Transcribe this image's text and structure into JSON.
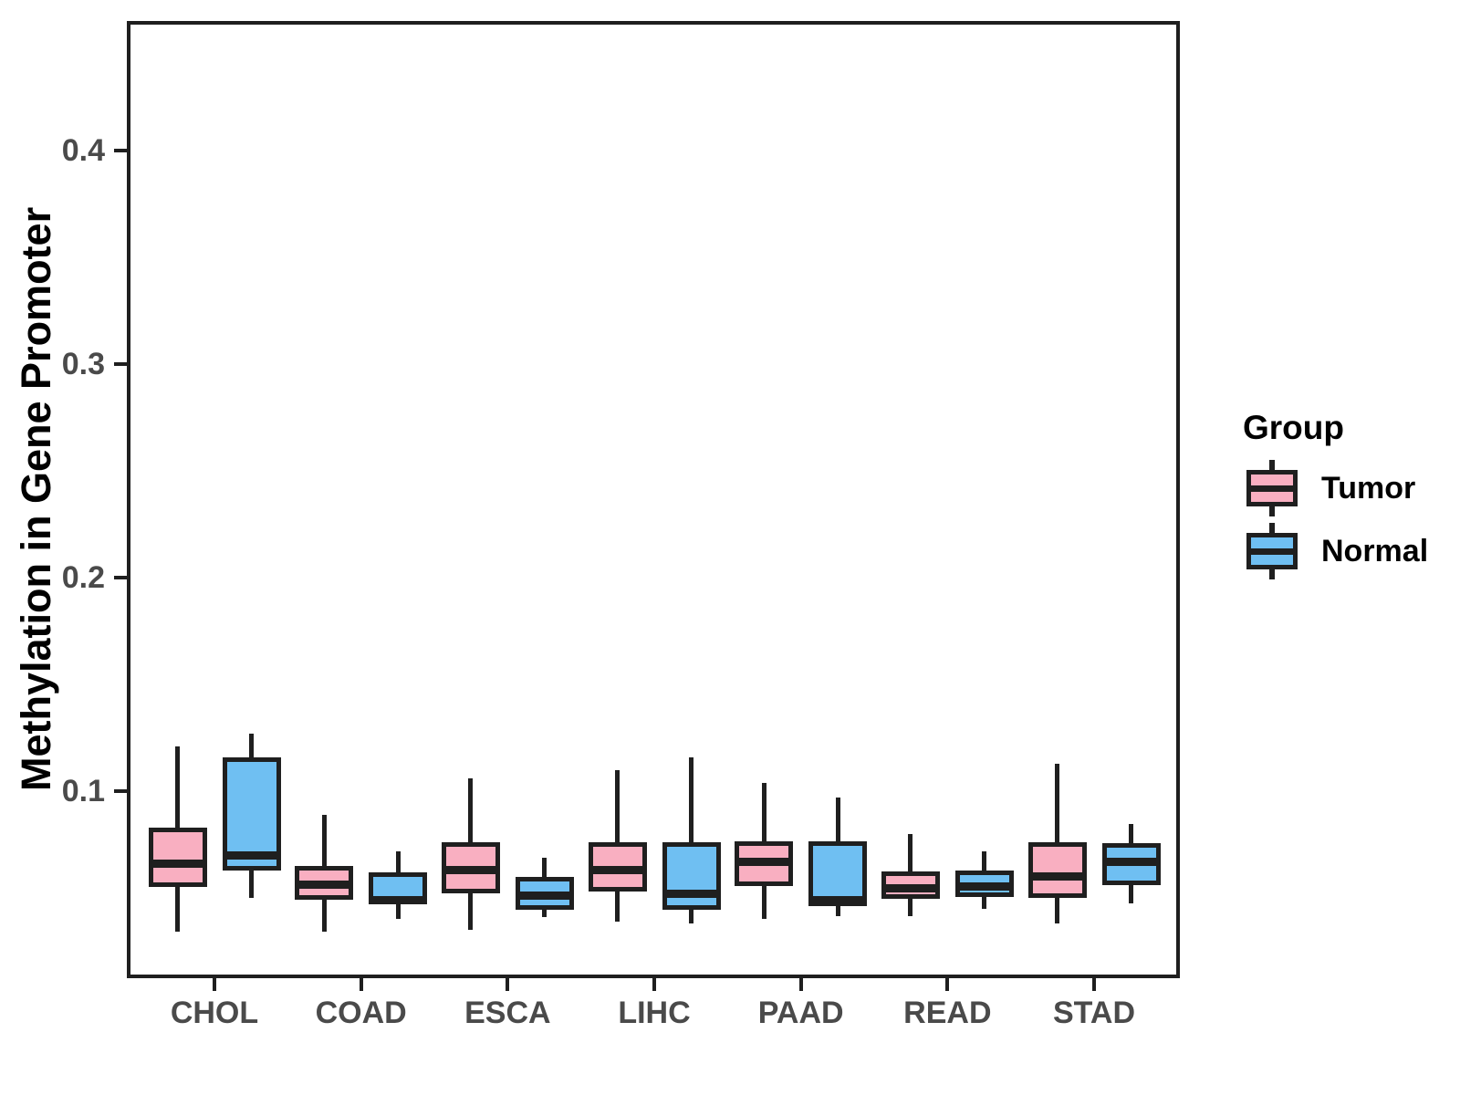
{
  "figure": {
    "y_axis_title": "Methylation in Gene Promoter",
    "x_axis_title": "",
    "legend": {
      "title": "Group",
      "entries": [
        {
          "label": "Tumor",
          "color": "#F9AFC1"
        },
        {
          "label": "Normal",
          "color": "#6FBFF2"
        }
      ]
    }
  },
  "chart_data": {
    "type": "boxplot",
    "title": "",
    "xlabel": "",
    "ylabel": "Methylation in Gene Promoter",
    "categories": [
      "CHOL",
      "COAD",
      "ESCA",
      "LIHC",
      "PAAD",
      "READ",
      "STAD"
    ],
    "y_ticks": [
      0.1,
      0.2,
      0.3,
      0.4
    ],
    "y_tick_labels": [
      "0.1",
      "0.2",
      "0.3",
      "0.4"
    ],
    "ylim": [
      0.012,
      0.46
    ],
    "grid": false,
    "legend_position": "right",
    "legend_title": "Group",
    "colors": {
      "stroke": "#1F1F1F",
      "tick_text": "#4A4A4A",
      "axis_title_text": "#000000",
      "tumor_fill": "#F9AFC1",
      "normal_fill": "#6FBFF2",
      "background": "#FFFFFF"
    },
    "series": [
      {
        "name": "Tumor",
        "color": "#F9AFC1",
        "boxes": [
          {
            "category": "CHOL",
            "whisker_low": 0.034,
            "q1": 0.055,
            "median": 0.066,
            "q3": 0.083,
            "whisker_high": 0.121
          },
          {
            "category": "COAD",
            "whisker_low": 0.034,
            "q1": 0.049,
            "median": 0.056,
            "q3": 0.065,
            "whisker_high": 0.089
          },
          {
            "category": "ESCA",
            "whisker_low": 0.035,
            "q1": 0.052,
            "median": 0.063,
            "q3": 0.076,
            "whisker_high": 0.106
          },
          {
            "category": "LIHC",
            "whisker_low": 0.039,
            "q1": 0.053,
            "median": 0.063,
            "q3": 0.076,
            "whisker_high": 0.11
          },
          {
            "category": "PAAD",
            "whisker_low": 0.04,
            "q1": 0.0555,
            "median": 0.067,
            "q3": 0.0765,
            "whisker_high": 0.104
          },
          {
            "category": "READ",
            "whisker_low": 0.0415,
            "q1": 0.0495,
            "median": 0.0545,
            "q3": 0.0625,
            "whisker_high": 0.08
          },
          {
            "category": "STAD",
            "whisker_low": 0.038,
            "q1": 0.05,
            "median": 0.06,
            "q3": 0.076,
            "whisker_high": 0.113
          }
        ]
      },
      {
        "name": "Normal",
        "color": "#6FBFF2",
        "boxes": [
          {
            "category": "CHOL",
            "whisker_low": 0.05,
            "q1": 0.063,
            "median": 0.07,
            "q3": 0.116,
            "whisker_high": 0.127
          },
          {
            "category": "COAD",
            "whisker_low": 0.04,
            "q1": 0.047,
            "median": 0.049,
            "q3": 0.062,
            "whisker_high": 0.072
          },
          {
            "category": "ESCA",
            "whisker_low": 0.041,
            "q1": 0.0445,
            "median": 0.051,
            "q3": 0.06,
            "whisker_high": 0.069
          },
          {
            "category": "LIHC",
            "whisker_low": 0.038,
            "q1": 0.0445,
            "median": 0.052,
            "q3": 0.076,
            "whisker_high": 0.116
          },
          {
            "category": "PAAD",
            "whisker_low": 0.0415,
            "q1": 0.046,
            "median": 0.049,
            "q3": 0.0765,
            "whisker_high": 0.097
          },
          {
            "category": "READ",
            "whisker_low": 0.045,
            "q1": 0.0505,
            "median": 0.0555,
            "q3": 0.063,
            "whisker_high": 0.072
          },
          {
            "category": "STAD",
            "whisker_low": 0.0474,
            "q1": 0.056,
            "median": 0.0667,
            "q3": 0.0756,
            "whisker_high": 0.0846
          }
        ]
      }
    ]
  }
}
